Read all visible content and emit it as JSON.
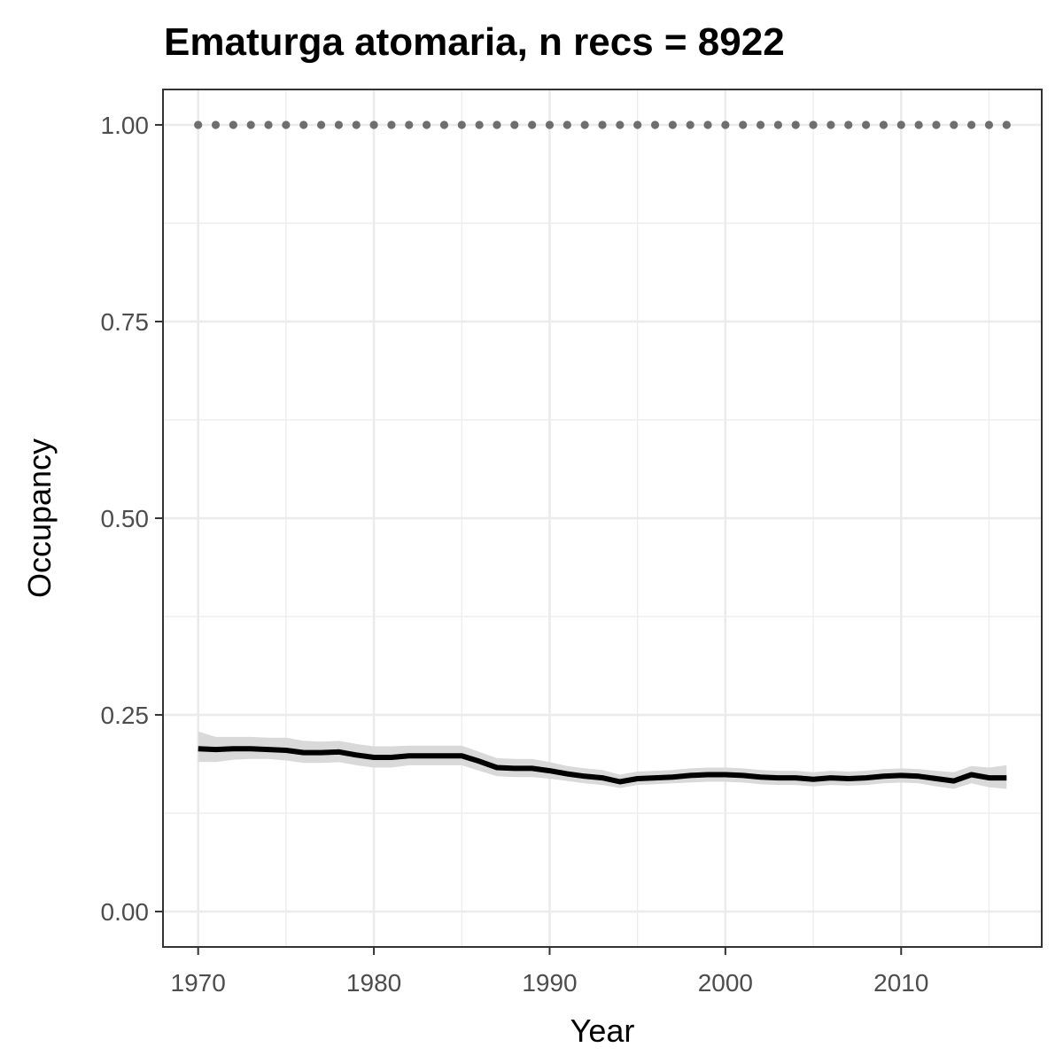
{
  "chart_data": {
    "type": "line",
    "title": "Ematurga atomaria, n recs = 8922",
    "xlabel": "Year",
    "ylabel": "Occupancy",
    "xlim": [
      1968,
      2018
    ],
    "ylim": [
      -0.045,
      1.045
    ],
    "x_ticks": [
      1970,
      1980,
      1990,
      2000,
      2010
    ],
    "x_tick_labels": [
      "1970",
      "1980",
      "1990",
      "2000",
      "2010"
    ],
    "y_ticks": [
      0,
      0.25,
      0.5,
      0.75,
      1.0
    ],
    "y_tick_labels": [
      "0.00",
      "0.25",
      "0.50",
      "0.75",
      "1.00"
    ],
    "grid": true,
    "legend": "none",
    "colors": {
      "line": "#000000",
      "ribbon": "#d9d9d9",
      "points": "#6e6e6e",
      "grid": "#ebebeb",
      "border": "#333333"
    },
    "series": [
      {
        "x": [
          1970,
          1971,
          1972,
          1973,
          1974,
          1975,
          1976,
          1977,
          1978,
          1979,
          1980,
          1981,
          1982,
          1983,
          1984,
          1985,
          1986,
          1987,
          1988,
          1989,
          1990,
          1991,
          1992,
          1993,
          1994,
          1995,
          1996,
          1997,
          1998,
          1999,
          2000,
          2001,
          2002,
          2003,
          2004,
          2005,
          2006,
          2007,
          2008,
          2009,
          2010,
          2011,
          2012,
          2013,
          2014,
          2015,
          2016
        ],
        "y": [
          0.207,
          0.206,
          0.207,
          0.207,
          0.206,
          0.205,
          0.202,
          0.202,
          0.203,
          0.199,
          0.196,
          0.196,
          0.198,
          0.198,
          0.198,
          0.198,
          0.191,
          0.183,
          0.182,
          0.182,
          0.179,
          0.175,
          0.172,
          0.17,
          0.165,
          0.169,
          0.17,
          0.171,
          0.173,
          0.174,
          0.174,
          0.173,
          0.171,
          0.17,
          0.17,
          0.168,
          0.17,
          0.169,
          0.17,
          0.172,
          0.173,
          0.172,
          0.169,
          0.166,
          0.174,
          0.17,
          0.17
        ],
        "lower": [
          0.19,
          0.19,
          0.193,
          0.194,
          0.194,
          0.192,
          0.189,
          0.189,
          0.19,
          0.186,
          0.183,
          0.183,
          0.186,
          0.186,
          0.186,
          0.186,
          0.179,
          0.172,
          0.171,
          0.171,
          0.169,
          0.166,
          0.163,
          0.161,
          0.157,
          0.161,
          0.162,
          0.163,
          0.164,
          0.165,
          0.165,
          0.164,
          0.162,
          0.161,
          0.161,
          0.159,
          0.161,
          0.16,
          0.161,
          0.163,
          0.164,
          0.163,
          0.159,
          0.156,
          0.163,
          0.158,
          0.156
        ],
        "upper": [
          0.229,
          0.222,
          0.222,
          0.222,
          0.221,
          0.221,
          0.217,
          0.216,
          0.217,
          0.213,
          0.21,
          0.21,
          0.211,
          0.211,
          0.211,
          0.211,
          0.203,
          0.195,
          0.194,
          0.194,
          0.19,
          0.185,
          0.182,
          0.18,
          0.174,
          0.178,
          0.179,
          0.18,
          0.182,
          0.183,
          0.183,
          0.182,
          0.18,
          0.179,
          0.179,
          0.177,
          0.179,
          0.178,
          0.179,
          0.181,
          0.182,
          0.181,
          0.179,
          0.177,
          0.185,
          0.183,
          0.186
        ]
      }
    ],
    "points": {
      "x": [
        1970,
        1971,
        1972,
        1973,
        1974,
        1975,
        1976,
        1977,
        1978,
        1979,
        1980,
        1981,
        1982,
        1983,
        1984,
        1985,
        1986,
        1987,
        1988,
        1989,
        1990,
        1991,
        1992,
        1993,
        1994,
        1995,
        1996,
        1997,
        1998,
        1999,
        2000,
        2001,
        2002,
        2003,
        2004,
        2005,
        2006,
        2007,
        2008,
        2009,
        2010,
        2011,
        2012,
        2013,
        2014,
        2015,
        2016
      ],
      "y": 1.0
    }
  }
}
